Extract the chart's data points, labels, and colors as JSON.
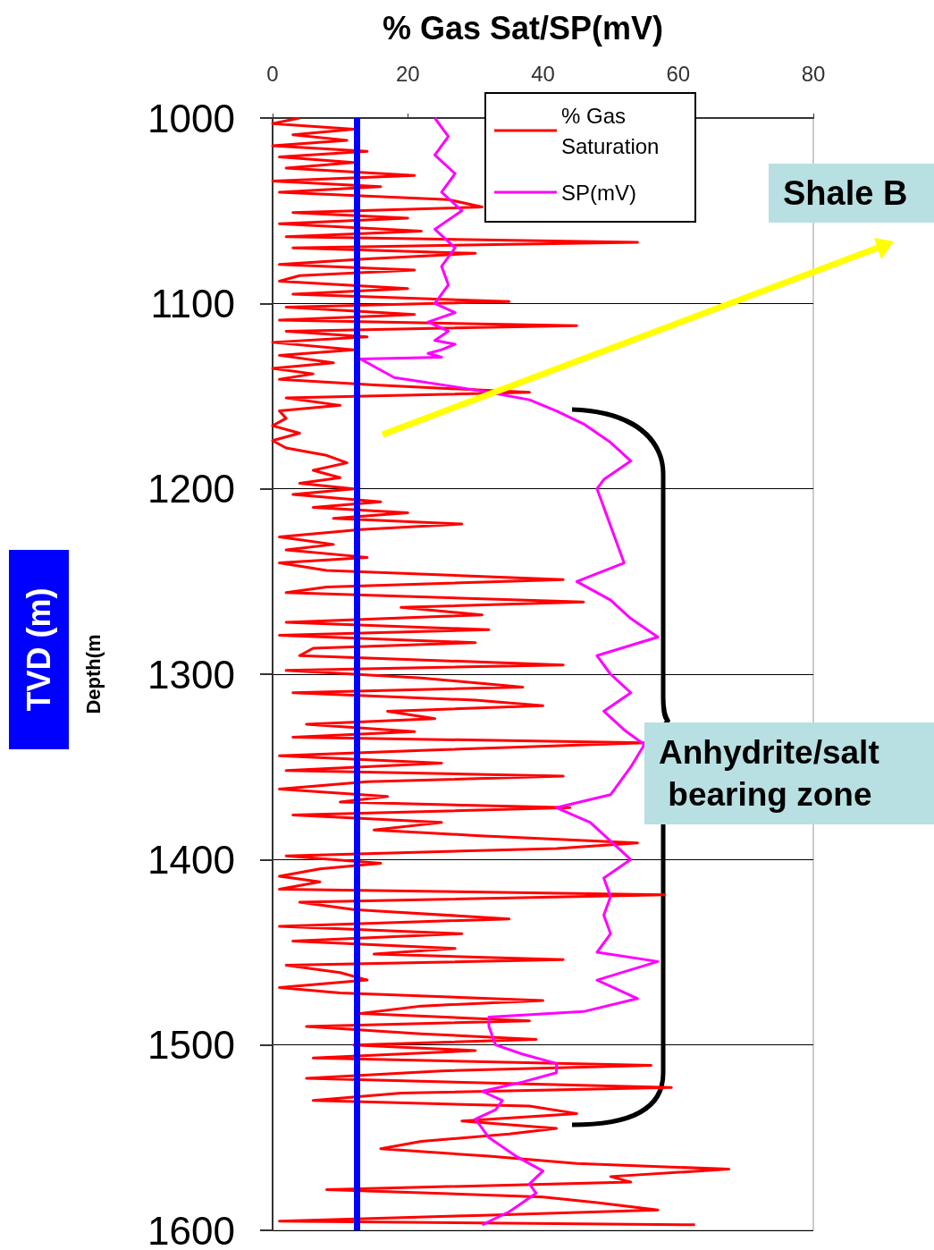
{
  "chart_data": {
    "type": "line",
    "title": "% Gas Sat/SP(mV)",
    "ylabel": "Depth(m",
    "annotations": [
      "Shale B",
      "Anhydrite/salt bearing zone",
      "TVD (m)"
    ],
    "xlim": [
      0,
      80
    ],
    "xticks": [
      0,
      20,
      40,
      60,
      80
    ],
    "ylim": [
      1600,
      1000
    ],
    "yticks": [
      1000,
      1100,
      1200,
      1300,
      1400,
      1500,
      1600
    ],
    "grid": "y",
    "legend": "top right",
    "marker": "none",
    "line_style": "solid",
    "ref_lines": [
      {
        "axis": "x",
        "value": 12.5,
        "color": "#0000ff"
      }
    ],
    "series": [
      {
        "name": "% Gas Saturation",
        "color": "#ff0000",
        "x": [
          4,
          0,
          12,
          3,
          11,
          0,
          14,
          1,
          12,
          2,
          21,
          0,
          16,
          1,
          26,
          31,
          3,
          20,
          1,
          22,
          2,
          54,
          3,
          30,
          14,
          1,
          21,
          4,
          1,
          20,
          3,
          35,
          2,
          21,
          1,
          45,
          2,
          14,
          0,
          12,
          1,
          9,
          0,
          6,
          1,
          15,
          38,
          2,
          10,
          1,
          2,
          0,
          4,
          0,
          2,
          8,
          11,
          6,
          10,
          4,
          12,
          3,
          16,
          6,
          20,
          9,
          28,
          13,
          1,
          9,
          2,
          14,
          1,
          8,
          43,
          8,
          2,
          46,
          19,
          31,
          2,
          32,
          1,
          30,
          6,
          4,
          43,
          2,
          22,
          37,
          3,
          30,
          40,
          17,
          24,
          5,
          21,
          3,
          55,
          23,
          1,
          25,
          2,
          43,
          14,
          1,
          17,
          10,
          44,
          3,
          25,
          15,
          30,
          54,
          42,
          2,
          16,
          7,
          1,
          7,
          1,
          58,
          4,
          12,
          35,
          1,
          28,
          3,
          27,
          15,
          43,
          2,
          10,
          14,
          1,
          10,
          40,
          22,
          13,
          38,
          5,
          22,
          39,
          12,
          30,
          6,
          56,
          25,
          5,
          59,
          19,
          6,
          38,
          45,
          28,
          42,
          35,
          22,
          16,
          32,
          45,
          67.5,
          50,
          53,
          8,
          40,
          48,
          57,
          30,
          1,
          62.5
        ],
        "values": [
          1000,
          1003,
          1006,
          1009,
          1012,
          1015,
          1018,
          1021,
          1024,
          1027,
          1031,
          1034,
          1037,
          1040,
          1044,
          1048,
          1051,
          1054,
          1057,
          1061,
          1064,
          1067,
          1070,
          1073,
          1076,
          1079,
          1082,
          1085,
          1088,
          1092,
          1095,
          1099,
          1102,
          1106,
          1109,
          1112,
          1115,
          1118,
          1121,
          1125,
          1128,
          1132,
          1135,
          1138,
          1141,
          1144,
          1148,
          1151,
          1155,
          1158,
          1162,
          1166,
          1170,
          1174,
          1178,
          1182,
          1186,
          1190,
          1194,
          1197,
          1200,
          1203,
          1207,
          1210,
          1213,
          1216,
          1219,
          1222,
          1226,
          1230,
          1233,
          1237,
          1240,
          1244,
          1249,
          1253,
          1256,
          1261,
          1264,
          1268,
          1272,
          1276,
          1279,
          1283,
          1286,
          1290,
          1295,
          1298,
          1302,
          1307,
          1310,
          1314,
          1317,
          1320,
          1324,
          1327,
          1331,
          1334,
          1337,
          1341,
          1344,
          1348,
          1352,
          1355,
          1358,
          1362,
          1366,
          1369,
          1372,
          1376,
          1380,
          1384,
          1387,
          1391,
          1394,
          1398,
          1402,
          1405,
          1409,
          1412,
          1416,
          1419,
          1423,
          1427,
          1432,
          1436,
          1440,
          1444,
          1448,
          1451,
          1454,
          1457,
          1461,
          1465,
          1469,
          1472,
          1476,
          1479,
          1483,
          1487,
          1490,
          1494,
          1497,
          1500,
          1503,
          1507,
          1511,
          1514,
          1518,
          1523,
          1526,
          1530,
          1533,
          1537,
          1541,
          1545,
          1548,
          1552,
          1556,
          1560,
          1564,
          1567,
          1571,
          1574,
          1578,
          1582,
          1585,
          1589,
          1592,
          1595,
          1597
        ]
      },
      {
        "name": "SP(mV)",
        "color": "#ff00ff",
        "x": [
          24,
          26,
          24,
          27,
          25,
          28,
          24,
          27,
          25,
          26,
          24,
          27,
          23,
          26,
          24,
          27,
          25,
          23,
          25,
          13,
          18,
          27,
          32,
          38,
          42,
          46,
          50,
          53,
          49,
          48,
          50,
          52,
          45,
          50,
          53,
          57,
          48,
          50,
          53,
          49,
          52,
          55,
          53,
          50,
          42,
          47,
          50,
          53,
          49,
          50,
          49,
          50,
          48,
          57,
          48,
          54,
          46,
          32,
          32,
          33,
          37,
          42,
          42,
          37,
          31,
          34,
          33,
          30,
          31,
          32,
          36,
          40,
          38,
          39,
          35,
          31
        ],
        "values": [
          1000,
          1010,
          1020,
          1030,
          1040,
          1050,
          1060,
          1070,
          1080,
          1090,
          1100,
          1105,
          1110,
          1115,
          1120,
          1122,
          1125,
          1127,
          1129,
          1130,
          1140,
          1145,
          1148,
          1152,
          1158,
          1165,
          1175,
          1185,
          1195,
          1200,
          1220,
          1240,
          1250,
          1260,
          1270,
          1280,
          1290,
          1300,
          1310,
          1320,
          1330,
          1338,
          1350,
          1365,
          1372,
          1380,
          1390,
          1400,
          1410,
          1420,
          1430,
          1440,
          1450,
          1455,
          1465,
          1475,
          1482,
          1485,
          1490,
          1500,
          1505,
          1510,
          1515,
          1520,
          1525,
          1530,
          1535,
          1540,
          1545,
          1550,
          1560,
          1568,
          1575,
          1580,
          1590,
          1597
        ]
      }
    ]
  }
}
